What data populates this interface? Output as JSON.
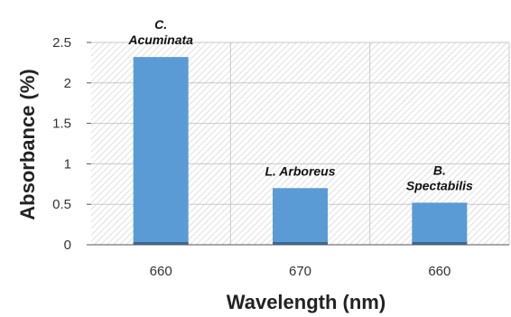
{
  "chart_data": {
    "type": "bar",
    "categories": [
      "660",
      "670",
      "660"
    ],
    "values": [
      2.32,
      0.7,
      0.52
    ],
    "bar_labels": [
      [
        "C.",
        "Acuminata"
      ],
      [
        "L. Arboreus"
      ],
      [
        "B.",
        "Spectabilis"
      ]
    ],
    "title": "",
    "xlabel": "Wavelength (nm)",
    "ylabel": "Absorbance (%)",
    "ylim": [
      0,
      2.5
    ],
    "yticks": [
      0,
      0.5,
      1,
      1.5,
      2,
      2.5
    ],
    "ytick_labels": [
      "0",
      "0.5",
      "1",
      "1.5",
      "2",
      "2.5"
    ],
    "grid": true,
    "legend": "none",
    "bar_color": "#5b9bd5",
    "plot_background": "hatched light gray"
  }
}
